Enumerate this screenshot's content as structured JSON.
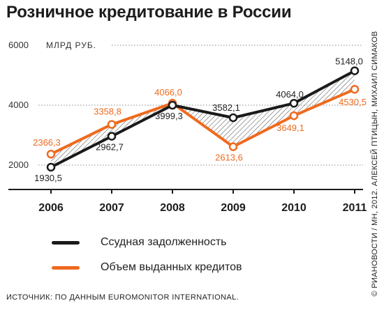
{
  "title": "Розничное кредитование в России",
  "credit": "© РИАНОВОСТИ / МН, 2012. АЛЕКСЕЙ ПТИЦЫН, МИХАИЛ СИМАКОВ",
  "source": "ИСТОЧНИК: ПО ДАННЫМ EUROMONITOR INTERNATIONAL.",
  "chart_data": {
    "type": "line",
    "title": "Розничное кредитование в России",
    "ylabel": "МЛРД РУБ.",
    "x": [
      "2006",
      "2007",
      "2008",
      "2009",
      "2010",
      "2011"
    ],
    "y_ticks": [
      "2000",
      "4000",
      "6000"
    ],
    "ylim": [
      1500,
      6000
    ],
    "grid": true,
    "legend_position": "bottom",
    "colors": {
      "black_series": "#1a1a1a",
      "orange_series": "#ef6a1e",
      "hatch": "#555555"
    },
    "series": [
      {
        "name": "Ссудная задолженность",
        "values": [
          1930.5,
          2962.7,
          3999.3,
          3582.1,
          4064.0,
          5148.0
        ],
        "labels": [
          "1930,5",
          "2962,7",
          "3999,3",
          "3582,1",
          "4064,0",
          "5148,0"
        ]
      },
      {
        "name": "Объем выданных кредитов",
        "values": [
          2366.3,
          3358.8,
          4066.0,
          2613.6,
          3649.1,
          4530.5
        ],
        "labels": [
          "2366,3",
          "3358,8",
          "4066,0",
          "2613,6",
          "3649,1",
          "4530,5"
        ]
      }
    ]
  }
}
